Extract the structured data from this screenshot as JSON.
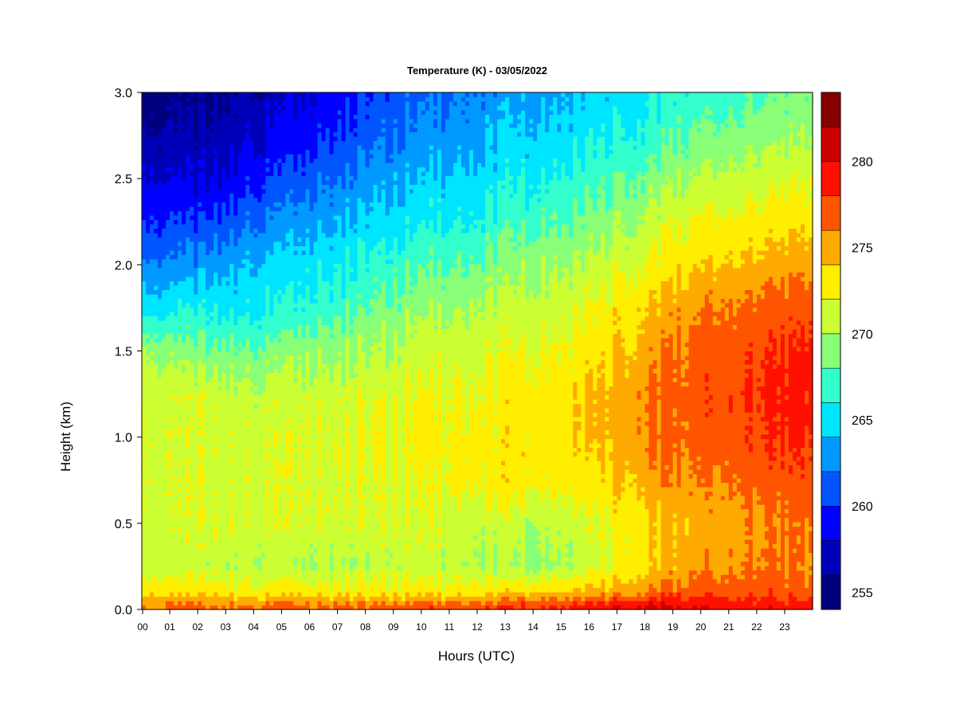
{
  "chart_data": {
    "type": "heatmap",
    "title": "Temperature (K) - 03/05/2022",
    "xlabel": "Hours (UTC)",
    "ylabel": "Height (km)",
    "xlim": [
      0,
      24
    ],
    "ylim": [
      0,
      3.0
    ],
    "x_ticks": [
      "00",
      "01",
      "02",
      "03",
      "04",
      "05",
      "06",
      "07",
      "08",
      "09",
      "10",
      "11",
      "12",
      "13",
      "14",
      "15",
      "16",
      "17",
      "18",
      "19",
      "20",
      "21",
      "22",
      "23"
    ],
    "y_ticks": [
      "0.0",
      "0.5",
      "1.0",
      "1.5",
      "2.0",
      "2.5",
      "3.0"
    ],
    "heights_km": [
      0.02,
      0.1,
      0.25,
      0.5,
      0.75,
      1.0,
      1.25,
      1.5,
      1.75,
      2.0,
      2.25,
      2.5,
      2.75,
      3.0
    ],
    "hours": [
      0,
      2,
      4,
      6,
      8,
      10,
      12,
      14,
      16,
      18,
      20,
      22,
      24
    ],
    "temperature_k": [
      [
        276.5,
        276.5,
        276.5,
        276.5,
        276.5,
        277.0,
        277.5,
        278.0,
        279.0,
        280.5,
        280.0,
        279.5,
        279.0
      ],
      [
        273.5,
        273.5,
        273.0,
        273.0,
        273.0,
        273.0,
        273.5,
        274.0,
        274.5,
        276.0,
        277.5,
        277.5,
        277.0
      ],
      [
        271.5,
        271.0,
        270.5,
        270.0,
        270.5,
        271.0,
        270.5,
        269.5,
        271.0,
        273.5,
        275.5,
        276.5,
        276.0
      ],
      [
        271.5,
        271.5,
        271.5,
        271.5,
        271.5,
        271.5,
        271.0,
        270.5,
        271.5,
        273.5,
        275.0,
        276.0,
        276.5
      ],
      [
        272.0,
        271.5,
        271.5,
        271.5,
        271.5,
        272.0,
        273.0,
        273.0,
        273.0,
        275.0,
        276.0,
        277.0,
        277.5
      ],
      [
        272.0,
        271.5,
        271.5,
        271.5,
        272.0,
        272.5,
        273.0,
        273.0,
        274.0,
        276.0,
        277.0,
        278.0,
        278.5
      ],
      [
        271.5,
        271.5,
        271.0,
        271.0,
        271.5,
        272.0,
        272.5,
        273.0,
        274.0,
        276.0,
        277.5,
        278.5,
        279.0
      ],
      [
        270.0,
        269.0,
        268.5,
        269.0,
        270.0,
        271.0,
        271.5,
        272.0,
        273.0,
        275.0,
        277.0,
        278.0,
        278.5
      ],
      [
        265.5,
        266.0,
        265.5,
        266.5,
        268.0,
        269.5,
        270.5,
        271.0,
        272.0,
        274.0,
        276.0,
        277.0,
        277.5
      ],
      [
        262.5,
        263.0,
        264.5,
        265.0,
        266.5,
        267.5,
        268.5,
        269.5,
        270.5,
        272.0,
        274.0,
        275.0,
        275.5
      ],
      [
        260.5,
        260.0,
        262.0,
        263.0,
        264.5,
        265.5,
        266.5,
        267.5,
        268.5,
        270.5,
        272.5,
        273.0,
        273.5
      ],
      [
        258.5,
        258.0,
        259.5,
        261.0,
        263.0,
        264.0,
        265.0,
        266.0,
        267.0,
        268.5,
        270.5,
        271.5,
        272.0
      ],
      [
        256.5,
        256.5,
        258.0,
        259.0,
        261.0,
        262.5,
        263.5,
        264.5,
        265.5,
        266.5,
        268.5,
        269.5,
        270.0
      ],
      [
        255.5,
        255.5,
        256.5,
        258.0,
        260.0,
        261.5,
        262.5,
        263.5,
        264.5,
        265.5,
        267.0,
        268.0,
        268.5
      ]
    ],
    "colorbar": {
      "levels": [
        254,
        256,
        258,
        260,
        262,
        264,
        266,
        268,
        270,
        272,
        274,
        276,
        278,
        280,
        282,
        284
      ],
      "colors": [
        "#00007f",
        "#0000b8",
        "#0000ff",
        "#0055ff",
        "#0099ff",
        "#00e5ff",
        "#33ffcc",
        "#88ff77",
        "#ccff33",
        "#ffee00",
        "#ffaa00",
        "#ff5500",
        "#ff1100",
        "#cc0000",
        "#880000"
      ],
      "tick_labels": [
        "255",
        "260",
        "265",
        "270",
        "275",
        "280"
      ],
      "tick_values": [
        255,
        260,
        265,
        270,
        275,
        280
      ]
    },
    "grid": false,
    "legend": "colorbar-right"
  }
}
